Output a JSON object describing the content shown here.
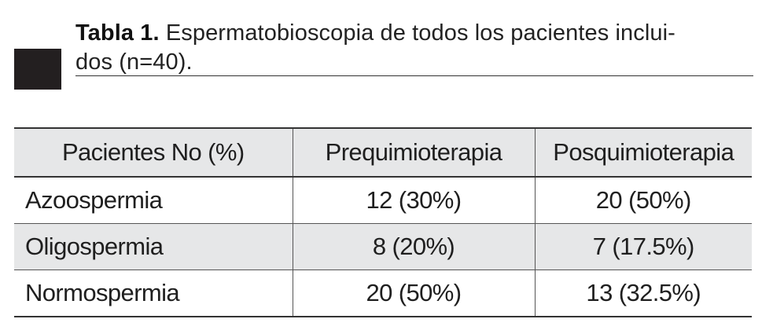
{
  "caption": {
    "label": "Tabla 1.",
    "text": "Espermatobioscopia de todos los pacientes inclui-",
    "text_line2": "dos (n=40)."
  },
  "table": {
    "headers": [
      "Pacientes No (%)",
      "Prequimioterapia",
      "Posquimioterapia"
    ],
    "rows": [
      [
        "Azoospermia",
        "12 (30%)",
        "20 (50%)"
      ],
      [
        "Oligospermia",
        "8 (20%)",
        "7 (17.5%)"
      ],
      [
        "Normospermia",
        "20 (50%)",
        "13 (32.5%)"
      ]
    ]
  },
  "colors": {
    "marker": "#231f20",
    "header_background": "#e6e7e8",
    "rule": "#333333"
  }
}
